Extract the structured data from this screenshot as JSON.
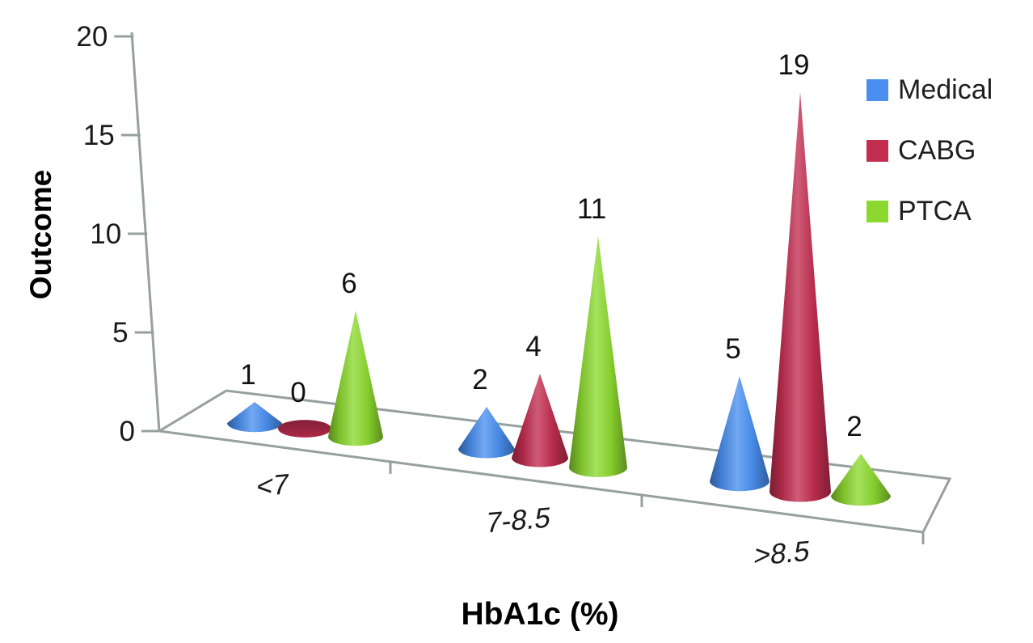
{
  "chart_data": {
    "type": "bar",
    "subtype": "3d-cone",
    "title": "",
    "xlabel": "HbA1c (%)",
    "ylabel": "Outcome",
    "categories": [
      "<7",
      "7-8.5",
      ">8.5"
    ],
    "series": [
      {
        "name": "Medical",
        "color": "#4a8ff0",
        "values": [
          1,
          2,
          5
        ]
      },
      {
        "name": "CABG",
        "color": "#c22e50",
        "values": [
          0,
          4,
          19
        ]
      },
      {
        "name": "PTCA",
        "color": "#8cd82f",
        "values": [
          6,
          11,
          2
        ]
      }
    ],
    "y_axis": {
      "min": 0,
      "max": 20,
      "tick_interval": 5,
      "ticks": [
        0,
        5,
        10,
        15,
        20
      ]
    },
    "value_labels_shown": true,
    "grid": false,
    "legend_position": "right",
    "colors": {
      "axis": "#96a09d",
      "text": "#1a1a1a",
      "background": "#ffffff"
    }
  }
}
